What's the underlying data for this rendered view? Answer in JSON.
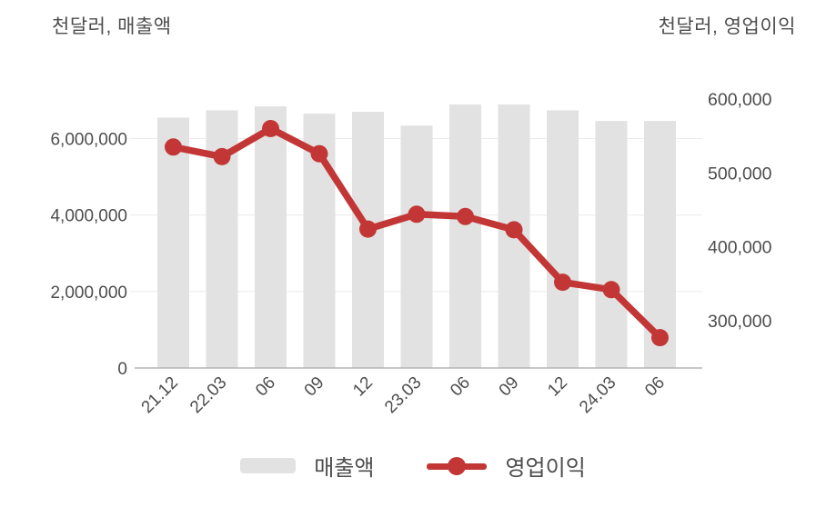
{
  "titles": {
    "left": "천달러, 매출액",
    "right": "천달러, 영업이익"
  },
  "legend": [
    {
      "label": "매출액",
      "marker": "bar"
    },
    {
      "label": "영업이익",
      "marker": "line"
    }
  ],
  "colors": {
    "bar": "#e2e2e2",
    "line": "#c23736",
    "text": "#4d4d4d",
    "grid": "#ebebeb",
    "axis": "#b5b5b5"
  },
  "chart_data": {
    "type": "bar",
    "subtype": "bar+line dual axis",
    "categories": [
      "21.12",
      "22.03",
      "06",
      "09",
      "12",
      "23.03",
      "06",
      "09",
      "12",
      "24.03",
      "06"
    ],
    "series": [
      {
        "name": "매출액",
        "type": "bar",
        "axis": "left",
        "values": [
          6550000,
          6740000,
          6840000,
          6650000,
          6700000,
          6340000,
          6890000,
          6890000,
          6740000,
          6460000,
          6460000
        ]
      },
      {
        "name": "영업이익",
        "type": "line",
        "axis": "right",
        "values": [
          535000,
          522000,
          560000,
          526000,
          424000,
          444000,
          441000,
          423000,
          352000,
          342000,
          277000
        ]
      }
    ],
    "left_axis": {
      "title": "천달러, 매출액",
      "tick_labels": [
        "0",
        "2,000,000",
        "4,000,000",
        "6,000,000"
      ],
      "tick_values": [
        0,
        2000000,
        4000000,
        6000000
      ],
      "range": [
        0,
        7200000
      ]
    },
    "right_axis": {
      "title": "천달러, 영업이익",
      "tick_labels": [
        "300,000",
        "400,000",
        "500,000",
        "600,000"
      ],
      "tick_values": [
        300000,
        400000,
        500000,
        600000
      ],
      "range": [
        236000,
        611000
      ]
    },
    "grid": true,
    "legend_position": "bottom"
  }
}
